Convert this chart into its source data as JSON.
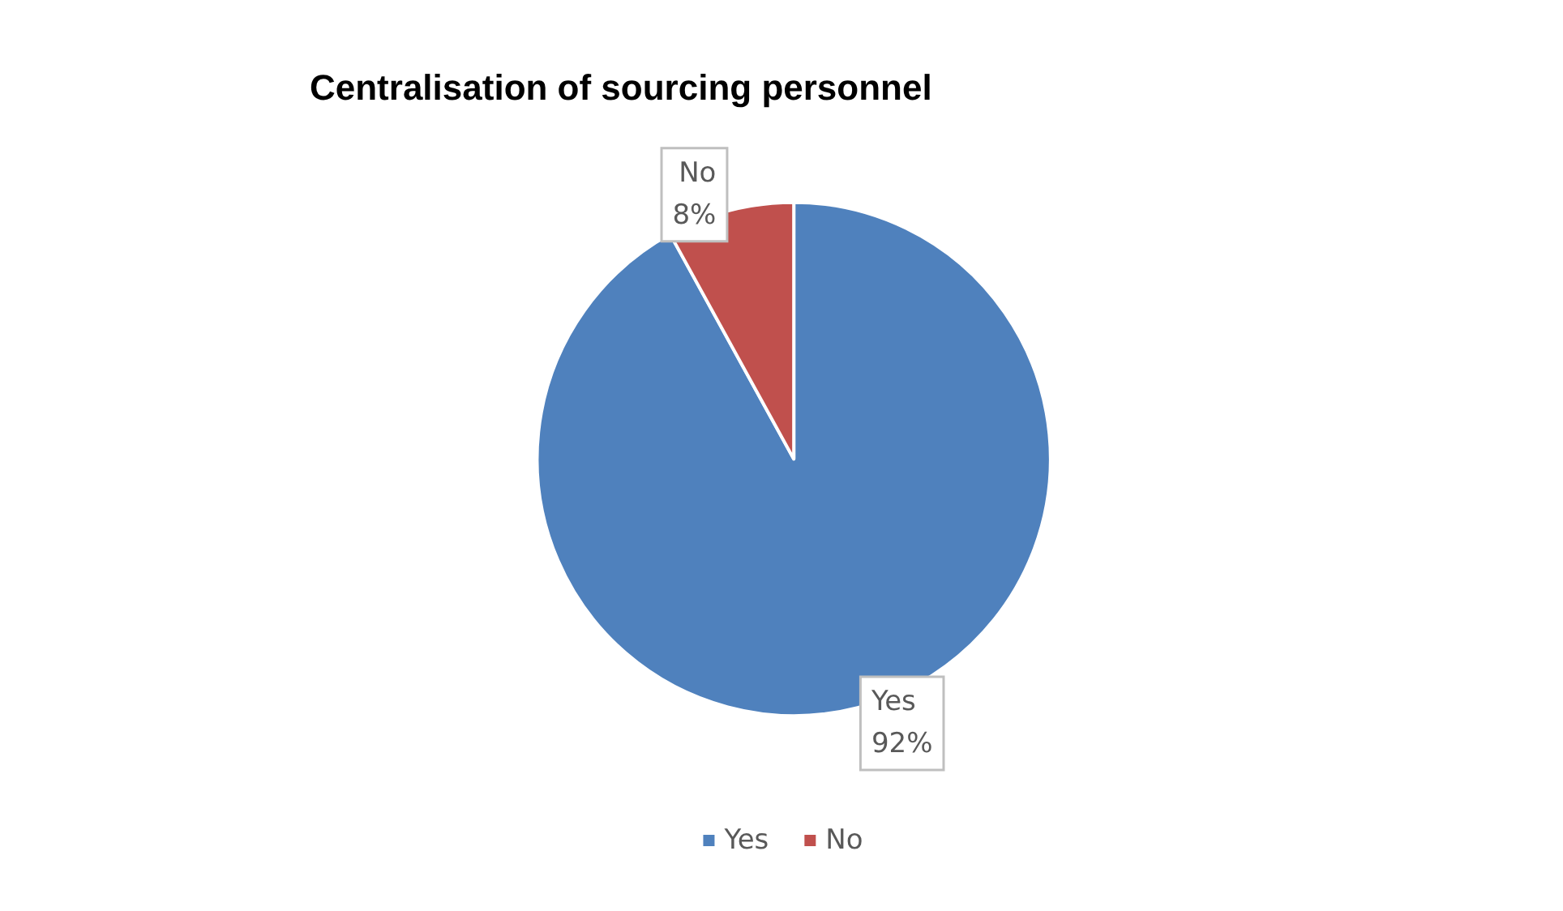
{
  "chart_data": {
    "type": "pie",
    "title": "Centralisation of sourcing personnel",
    "categories": [
      "Yes",
      "No"
    ],
    "values": [
      92,
      8
    ],
    "colors": [
      "#4f81bd",
      "#c0504d"
    ],
    "value_labels": [
      "92%",
      "8%"
    ],
    "legend": "bottom"
  }
}
